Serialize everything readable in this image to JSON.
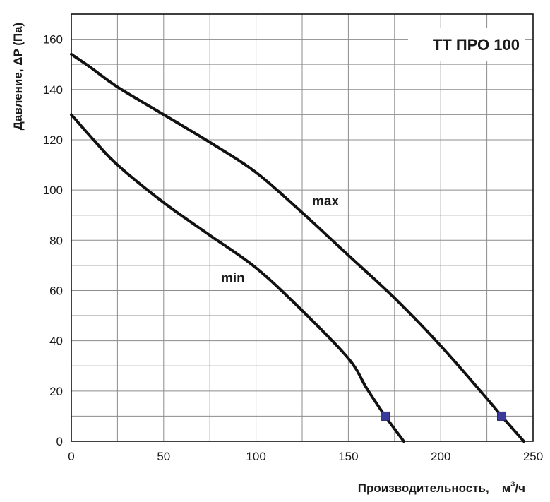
{
  "chart_data": {
    "type": "line",
    "title": "TT ПРО 100",
    "xlabel": "Производительность,",
    "xlabel_unit_base": "м",
    "xlabel_unit_exp": "3",
    "xlabel_unit_tail": "/ч",
    "ylabel": "Давление, ΔP (Па)",
    "xlim": [
      0,
      250
    ],
    "ylim": [
      0,
      170
    ],
    "x_ticks": [
      0,
      50,
      100,
      150,
      200,
      250
    ],
    "y_ticks": [
      0,
      20,
      40,
      60,
      80,
      100,
      120,
      140,
      160
    ],
    "x_grid_step": 25,
    "y_grid_step": 10,
    "grid": true,
    "series": [
      {
        "name": "max",
        "x": [
          0,
          10,
          25,
          50,
          75,
          100,
          125,
          150,
          175,
          200,
          225,
          233,
          245
        ],
        "y": [
          154,
          149,
          141,
          130,
          119,
          107,
          91,
          74,
          57,
          38,
          17,
          10,
          0
        ],
        "marker_point": [
          233,
          10
        ]
      },
      {
        "name": "min",
        "x": [
          0,
          12,
          25,
          50,
          75,
          100,
          125,
          150,
          160,
          170,
          180
        ],
        "y": [
          130,
          120,
          110,
          95,
          82,
          69,
          52,
          33,
          21,
          10,
          0
        ],
        "marker_point": [
          170,
          10
        ]
      }
    ],
    "line_color": "#111111",
    "marker_color": "#3a3a9a",
    "grid_color": "#8c8c8c"
  }
}
